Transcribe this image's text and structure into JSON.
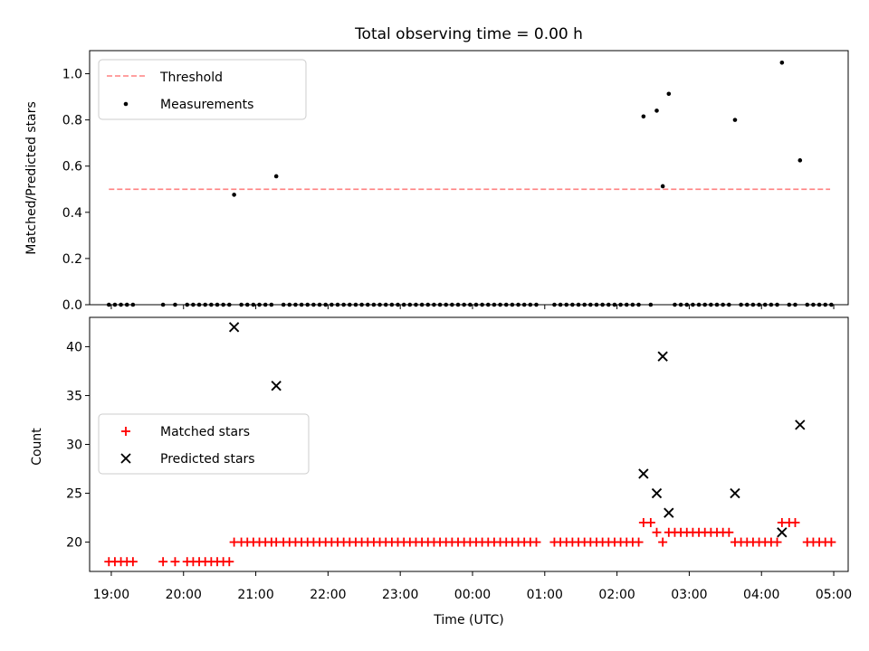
{
  "chart_data": [
    {
      "type": "scatter",
      "title": "Total observing time = 0.00 h",
      "xlabel": "",
      "ylabel": "Matched/Predicted stars",
      "ylim": [
        0,
        1.1
      ],
      "yticks": [
        0.0,
        0.2,
        0.4,
        0.6,
        0.8,
        1.0
      ],
      "ytick_labels": [
        "0.0",
        "0.2",
        "0.4",
        "0.6",
        "0.8",
        "1.0"
      ],
      "legend_position": "top-left",
      "threshold": {
        "name": "Threshold",
        "value": 0.5,
        "x_start": "18:58",
        "x_end": "04:57",
        "color": "#ff8080"
      },
      "series": [
        {
          "name": "Measurements",
          "color": "#000000",
          "points": [
            [
              "20:42",
              0.476
            ],
            [
              "21:17",
              0.556
            ],
            [
              "02:22",
              0.815
            ],
            [
              "02:33",
              0.84
            ],
            [
              "02:38",
              0.513
            ],
            [
              "02:43",
              0.913
            ],
            [
              "03:38",
              0.8
            ],
            [
              "04:17",
              1.048
            ],
            [
              "04:32",
              0.625
            ]
          ],
          "zero_times": [
            "18:58",
            "19:03",
            "19:08",
            "19:13",
            "19:18",
            "19:43",
            "19:53",
            "20:03",
            "20:08",
            "20:13",
            "20:18",
            "20:23",
            "20:28",
            "20:33",
            "20:38",
            "20:48",
            "20:53",
            "20:58",
            "21:03",
            "21:08",
            "21:13",
            "21:23",
            "21:28",
            "21:33",
            "21:38",
            "21:43",
            "21:48",
            "21:53",
            "21:58",
            "22:03",
            "22:08",
            "22:13",
            "22:18",
            "22:23",
            "22:28",
            "22:33",
            "22:38",
            "22:43",
            "22:48",
            "22:53",
            "22:58",
            "23:03",
            "23:08",
            "23:13",
            "23:18",
            "23:23",
            "23:28",
            "23:33",
            "23:38",
            "23:43",
            "23:48",
            "23:53",
            "23:58",
            "00:03",
            "00:08",
            "00:13",
            "00:18",
            "00:23",
            "00:28",
            "00:33",
            "00:38",
            "00:43",
            "00:48",
            "00:53",
            "01:08",
            "01:13",
            "01:18",
            "01:23",
            "01:28",
            "01:33",
            "01:38",
            "01:43",
            "01:48",
            "01:53",
            "01:58",
            "02:03",
            "02:08",
            "02:13",
            "02:18",
            "02:28",
            "02:48",
            "02:53",
            "02:58",
            "03:03",
            "03:08",
            "03:13",
            "03:18",
            "03:23",
            "03:28",
            "03:33",
            "03:43",
            "03:48",
            "03:53",
            "03:58",
            "04:03",
            "04:08",
            "04:13",
            "04:23",
            "04:28",
            "04:38",
            "04:43",
            "04:48",
            "04:53",
            "04:58"
          ]
        }
      ]
    },
    {
      "type": "scatter",
      "title": "",
      "xlabel": "Time (UTC)",
      "ylabel": "Count",
      "ylim": [
        17,
        43
      ],
      "yticks": [
        20,
        25,
        30,
        35,
        40
      ],
      "ytick_labels": [
        "20",
        "25",
        "30",
        "35",
        "40"
      ],
      "x_tick_labels": [
        "19:00",
        "20:00",
        "21:00",
        "22:00",
        "23:00",
        "00:00",
        "01:00",
        "02:00",
        "03:00",
        "04:00",
        "05:00"
      ],
      "legend_position": "center-left",
      "series": [
        {
          "name": "Matched stars",
          "color": "#ff0000",
          "groups": [
            {
              "value": 18,
              "times": [
                "18:58",
                "19:03",
                "19:08",
                "19:13",
                "19:18",
                "19:43",
                "19:53",
                "20:03",
                "20:08",
                "20:13",
                "20:18",
                "20:23",
                "20:28",
                "20:33",
                "20:38"
              ]
            },
            {
              "value": 20,
              "times": [
                "20:42",
                "20:48",
                "20:53",
                "20:58",
                "21:03",
                "21:08",
                "21:13",
                "21:17",
                "21:23",
                "21:28",
                "21:33",
                "21:38",
                "21:43",
                "21:48",
                "21:53",
                "21:58",
                "22:03",
                "22:08",
                "22:13",
                "22:18",
                "22:23",
                "22:28",
                "22:33",
                "22:38",
                "22:43",
                "22:48",
                "22:53",
                "22:58",
                "23:03",
                "23:08",
                "23:13",
                "23:18",
                "23:23",
                "23:28",
                "23:33",
                "23:38",
                "23:43",
                "23:48",
                "23:53",
                "23:58",
                "00:03",
                "00:08",
                "00:13",
                "00:18",
                "00:23",
                "00:28",
                "00:33",
                "00:38",
                "00:43",
                "00:48",
                "00:53",
                "01:08",
                "01:13",
                "01:18",
                "01:23",
                "01:28",
                "01:33",
                "01:38",
                "01:43",
                "01:48",
                "01:53",
                "01:58",
                "02:03",
                "02:08",
                "02:13",
                "02:18",
                "02:38",
                "03:38",
                "03:43",
                "03:48",
                "03:53",
                "03:58",
                "04:03",
                "04:08",
                "04:13",
                "04:38",
                "04:43",
                "04:48",
                "04:53",
                "04:58"
              ]
            },
            {
              "value": 22,
              "times": [
                "02:22",
                "02:28",
                "04:17",
                "04:23",
                "04:28"
              ]
            },
            {
              "value": 21,
              "times": [
                "02:33",
                "02:43",
                "02:48",
                "02:53",
                "02:58",
                "03:03",
                "03:08",
                "03:13",
                "03:18",
                "03:23",
                "03:28",
                "03:33"
              ]
            }
          ]
        },
        {
          "name": "Predicted stars",
          "color": "#000000",
          "points": [
            [
              "20:42",
              42
            ],
            [
              "21:17",
              36
            ],
            [
              "02:22",
              27
            ],
            [
              "02:33",
              25
            ],
            [
              "02:38",
              39
            ],
            [
              "02:43",
              23
            ],
            [
              "03:38",
              25
            ],
            [
              "04:17",
              21
            ],
            [
              "04:32",
              32
            ]
          ]
        }
      ]
    }
  ]
}
